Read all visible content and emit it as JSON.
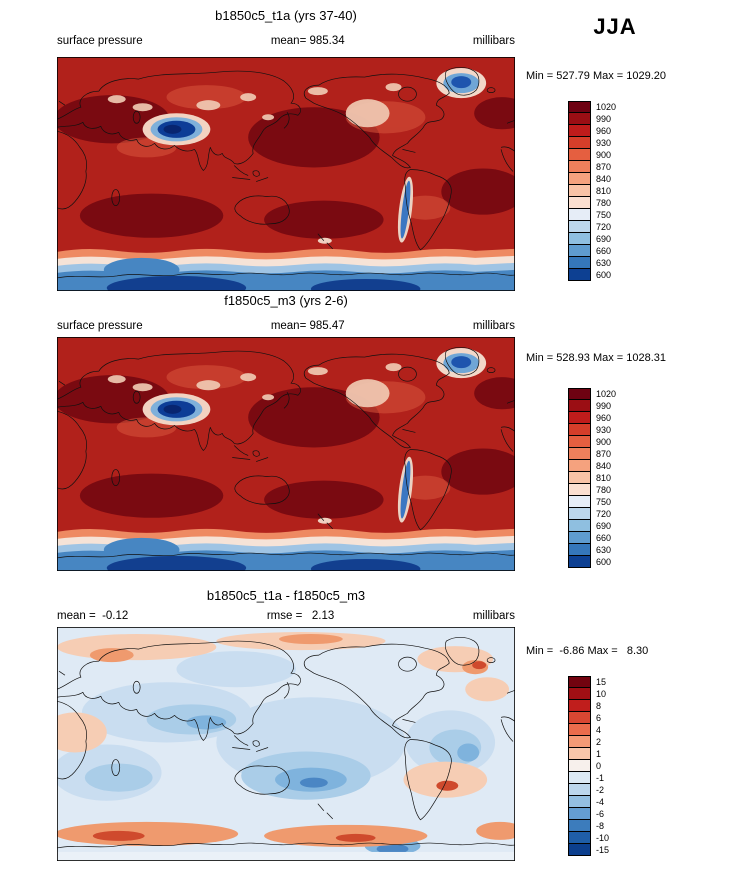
{
  "season": "JJA",
  "panels": [
    {
      "title": "b1850c5_t1a (yrs 37-40)",
      "variable": "surface pressure",
      "mean": "mean= 985.34",
      "units": "millibars",
      "minmax": "Min = 527.79 Max = 1029.20",
      "colorbar": {
        "labels": [
          "1020",
          "990",
          "960",
          "930",
          "900",
          "870",
          "840",
          "810",
          "780",
          "750",
          "720",
          "690",
          "660",
          "630",
          "600"
        ],
        "colors": [
          "#6e0212",
          "#9b0e14",
          "#bf1c1b",
          "#d53e2a",
          "#e55f40",
          "#ef805c",
          "#f5a27e",
          "#f9c3a6",
          "#fbdfd0",
          "#e6edf7",
          "#bdd7ec",
          "#8fbfe0",
          "#5f9ccf",
          "#3577ba",
          "#0d4092"
        ]
      }
    },
    {
      "title": "f1850c5_m3 (yrs 2-6)",
      "variable": "surface pressure",
      "mean": "mean= 985.47",
      "units": "millibars",
      "minmax": "Min = 528.93 Max = 1028.31",
      "colorbar": {
        "labels": [
          "1020",
          "990",
          "960",
          "930",
          "900",
          "870",
          "840",
          "810",
          "780",
          "750",
          "720",
          "690",
          "660",
          "630",
          "600"
        ],
        "colors": [
          "#6e0212",
          "#9b0e14",
          "#bf1c1b",
          "#d53e2a",
          "#e55f40",
          "#ef805c",
          "#f5a27e",
          "#f9c3a6",
          "#fbdfd0",
          "#e6edf7",
          "#bdd7ec",
          "#8fbfe0",
          "#5f9ccf",
          "#3577ba",
          "#0d4092"
        ]
      }
    },
    {
      "title": "b1850c5_t1a - f1850c5_m3",
      "mean": "mean =  -0.12",
      "rmse": "rmse =   2.13",
      "units": "millibars",
      "minmax": "Min =  -6.86 Max =   8.30",
      "colorbar": {
        "labels": [
          "15",
          "10",
          "8",
          "6",
          "4",
          "2",
          "1",
          "0",
          "-1",
          "-2",
          "-4",
          "-6",
          "-8",
          "-10",
          "-15"
        ],
        "colors": [
          "#72030f",
          "#a00f14",
          "#c01e1c",
          "#d84732",
          "#ea6c4c",
          "#f49a76",
          "#f9c6ab",
          "#f7f0ec",
          "#dce9f4",
          "#bcd6ec",
          "#94bfe1",
          "#659ed2",
          "#3c7cbc",
          "#1f5ea8",
          "#0c3f8e"
        ]
      }
    }
  ],
  "chart_data": [
    {
      "type": "heatmap",
      "title": "b1850c5_t1a (yrs 37-40)",
      "variable": "surface pressure",
      "season": "JJA",
      "units": "millibars",
      "mean": 985.34,
      "min": 527.79,
      "max": 1029.2,
      "levels": [
        600,
        630,
        660,
        690,
        720,
        750,
        780,
        810,
        840,
        870,
        900,
        930,
        960,
        990,
        1020
      ],
      "projection": "global lat-lon, Pacific-centered",
      "legend_position": "right",
      "notes": "Filled contour map of surface pressure; high values (dark red >1020) over subtropical oceans, low values (blue <700) over Tibetan Plateau, Greenland, Andes and Antarctica."
    },
    {
      "type": "heatmap",
      "title": "f1850c5_m3 (yrs 2-6)",
      "variable": "surface pressure",
      "season": "JJA",
      "units": "millibars",
      "mean": 985.47,
      "min": 528.93,
      "max": 1028.31,
      "levels": [
        600,
        630,
        660,
        690,
        720,
        750,
        780,
        810,
        840,
        870,
        900,
        930,
        960,
        990,
        1020
      ],
      "projection": "global lat-lon, Pacific-centered",
      "legend_position": "right",
      "notes": "Nearly identical spatial pattern to case 1."
    },
    {
      "type": "heatmap",
      "title": "b1850c5_t1a - f1850c5_m3",
      "variable": "surface pressure difference",
      "season": "JJA",
      "units": "millibars",
      "mean": -0.12,
      "rmse": 2.13,
      "min": -6.86,
      "max": 8.3,
      "levels": [
        -15,
        -10,
        -8,
        -6,
        -4,
        -2,
        -1,
        0,
        1,
        2,
        4,
        6,
        8,
        10,
        15
      ],
      "projection": "global lat-lon, Pacific-centered",
      "legend_position": "right",
      "notes": "Mostly weak negative (light blue) differences with positive (orange/red) band along the Southern Ocean and patches in the Arctic; stronger negative blob in the South Pacific."
    }
  ]
}
